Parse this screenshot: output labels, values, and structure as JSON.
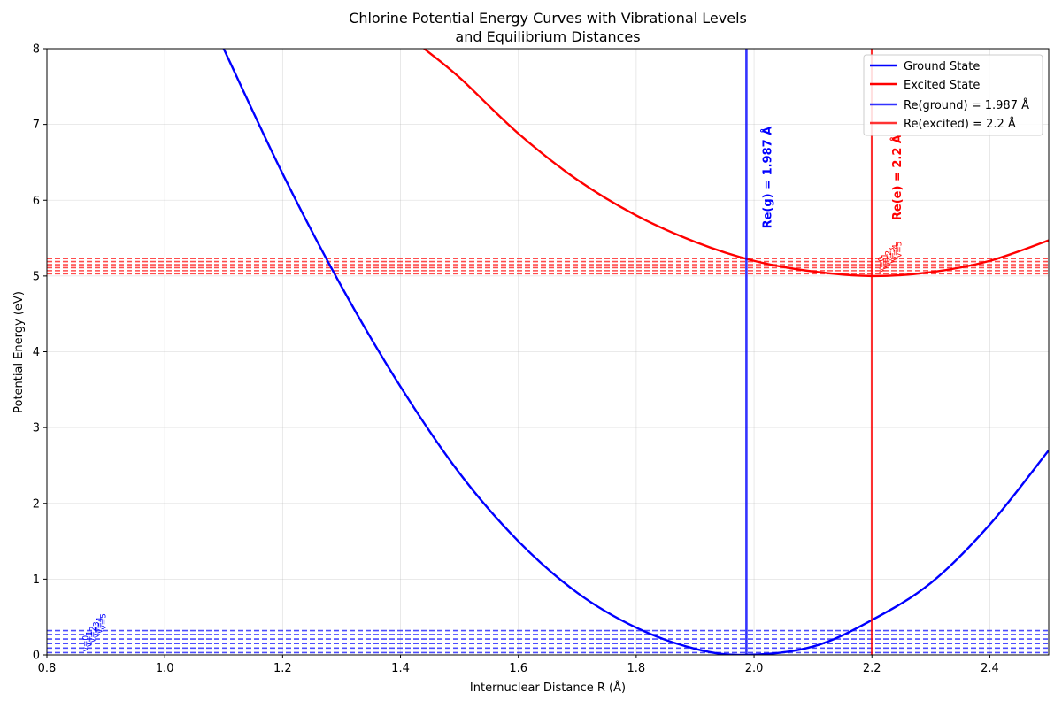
{
  "chart_data": {
    "type": "line",
    "title_line1": "Chlorine Potential Energy Curves with Vibrational Levels",
    "title_line2": "and Equilibrium Distances",
    "xlabel": "Internuclear Distance R (Å)",
    "ylabel": "Potential Energy (eV)",
    "xlim": [
      0.8,
      2.5
    ],
    "ylim": [
      0,
      8
    ],
    "xticks": [
      0.8,
      1.0,
      1.2,
      1.4,
      1.6,
      1.8,
      2.0,
      2.2,
      2.4
    ],
    "xtick_labels": [
      "0.8",
      "1.0",
      "1.2",
      "1.4",
      "1.6",
      "1.8",
      "2.0",
      "2.2",
      "2.4"
    ],
    "yticks": [
      0,
      1,
      2,
      3,
      4,
      5,
      6,
      7,
      8
    ],
    "ytick_labels": [
      "0",
      "1",
      "2",
      "3",
      "4",
      "5",
      "6",
      "7",
      "8"
    ],
    "grid": true,
    "legend_position": "top-right",
    "series": [
      {
        "name": "Ground State",
        "color": "#0000ff",
        "x": [
          1.1,
          1.2,
          1.3,
          1.4,
          1.5,
          1.6,
          1.7,
          1.8,
          1.9,
          1.987,
          2.1,
          2.2,
          2.3,
          2.4,
          2.5
        ],
        "y": [
          8.0,
          6.35,
          4.86,
          3.54,
          2.4,
          1.5,
          0.82,
          0.36,
          0.08,
          0.0,
          0.11,
          0.46,
          0.95,
          1.72,
          2.7
        ]
      },
      {
        "name": "Excited State",
        "color": "#ff0000",
        "x": [
          1.44,
          1.5,
          1.6,
          1.7,
          1.8,
          1.9,
          2.0,
          2.1,
          2.2,
          2.3,
          2.4,
          2.5
        ],
        "y": [
          8.0,
          7.62,
          6.88,
          6.27,
          5.8,
          5.45,
          5.2,
          5.06,
          5.0,
          5.05,
          5.2,
          5.47
        ]
      }
    ],
    "vlines": [
      {
        "name": "Re(ground) = 1.987 Å",
        "x": 1.987,
        "color": "#0000ff"
      },
      {
        "name": "Re(excited) = 2.2 Å",
        "x": 2.2,
        "color": "#ff0000"
      }
    ],
    "ground_levels": {
      "color": "#0000ff",
      "energies": [
        0.03,
        0.09,
        0.15,
        0.21,
        0.27,
        0.32
      ],
      "labels": [
        "v=0",
        "v=1",
        "v=2",
        "v=3",
        "v=4",
        "v=5"
      ],
      "label_x": 0.87
    },
    "excited_levels": {
      "color": "#ff0000",
      "energies": [
        5.03,
        5.07,
        5.11,
        5.15,
        5.19,
        5.23
      ],
      "labels": [
        "v=0",
        "v=1",
        "v=2",
        "v=3",
        "v=4",
        "v=5"
      ],
      "label_x": 2.22
    },
    "annotations": [
      {
        "text": "Re(g) = 1.987 Å",
        "x": 2.05,
        "y": 6.3,
        "color": "#0000ff"
      },
      {
        "text": "Re(e) = 2.2 Å",
        "x": 2.27,
        "y": 6.3,
        "color": "#ff0000"
      }
    ]
  }
}
